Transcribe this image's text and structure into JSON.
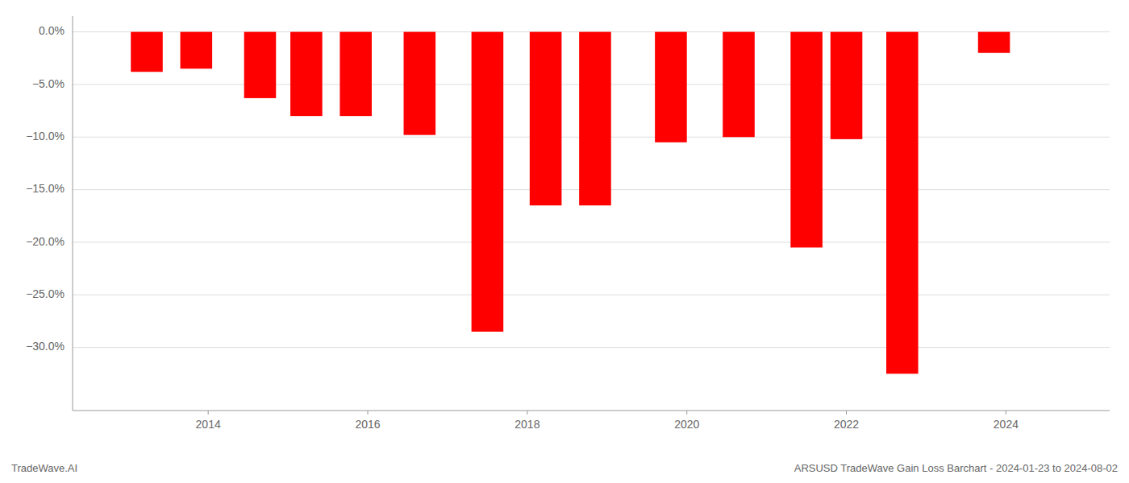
{
  "chart_data": {
    "type": "bar",
    "title": "ARSUSD TradeWave Gain Loss Barchart - 2024-01-23 to 2024-08-02",
    "annotations": [
      "TradeWave.AI"
    ],
    "x": [
      2013.23,
      2013.85,
      2014.65,
      2015.23,
      2015.85,
      2016.65,
      2017.5,
      2018.23,
      2018.85,
      2019.8,
      2020.65,
      2021.5,
      2022.0,
      2022.7,
      2023.85
    ],
    "values": [
      -3.8,
      -3.5,
      -6.3,
      -8.0,
      -8.0,
      -9.8,
      -28.5,
      -16.5,
      -16.5,
      -10.5,
      -10.0,
      -20.5,
      -10.2,
      -32.5,
      -2.0
    ],
    "color": "#ff0000",
    "xlim": [
      2012.3,
      2025.3
    ],
    "xticks": [
      2014,
      2016,
      2018,
      2020,
      2022,
      2024
    ],
    "ylim": [
      -36,
      1.5
    ],
    "yticks": [
      {
        "value": 0.0,
        "label": "0.0%"
      },
      {
        "value": -5.0,
        "label": "−5.0%"
      },
      {
        "value": -10.0,
        "label": "−10.0%"
      },
      {
        "value": -15.0,
        "label": "−15.0%"
      },
      {
        "value": -20.0,
        "label": "−20.0%"
      },
      {
        "value": -25.0,
        "label": "−25.0%"
      },
      {
        "value": -30.0,
        "label": "−30.0%"
      }
    ],
    "grid": true
  }
}
